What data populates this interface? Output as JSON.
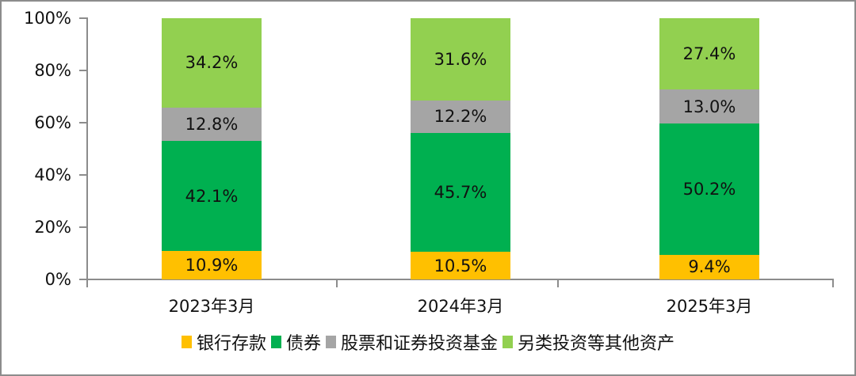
{
  "chart_data": {
    "type": "bar",
    "stacked": true,
    "title": "",
    "xlabel": "",
    "ylabel": "",
    "ylim": [
      0,
      100
    ],
    "y_ticks": [
      "0%",
      "20%",
      "40%",
      "60%",
      "80%",
      "100%"
    ],
    "grid": false,
    "legend_position": "bottom",
    "categories": [
      "2023年3月",
      "2024年3月",
      "2025年3月"
    ],
    "series": [
      {
        "name": "银行存款",
        "color": "#FFC000",
        "values": [
          10.9,
          10.5,
          9.4
        ],
        "labels": [
          "10.9%",
          "10.5%",
          "9.4%"
        ]
      },
      {
        "name": "债券",
        "color": "#00B050",
        "values": [
          42.1,
          45.7,
          50.2
        ],
        "labels": [
          "42.1%",
          "45.7%",
          "50.2%"
        ]
      },
      {
        "name": "股票和证券投资基金",
        "color": "#A5A5A5",
        "values": [
          12.8,
          12.2,
          13.0
        ],
        "labels": [
          "12.8%",
          "12.2%",
          "13.0%"
        ]
      },
      {
        "name": "另类投资等其他资产",
        "color": "#92D050",
        "values": [
          34.2,
          31.6,
          27.4
        ],
        "labels": [
          "34.2%",
          "31.6%",
          "27.4%"
        ]
      }
    ]
  }
}
